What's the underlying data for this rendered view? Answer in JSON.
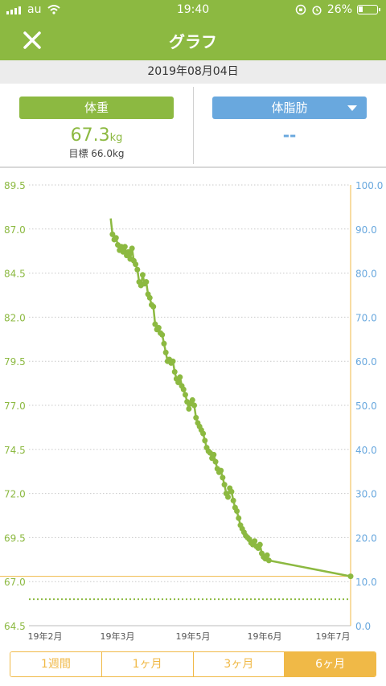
{
  "status_bar": {
    "carrier": "au",
    "time": "19:40",
    "battery": "26%",
    "battery_level": 0.26
  },
  "header": {
    "title": "グラフ",
    "close_icon": "close-icon"
  },
  "date": "2019年08月04日",
  "weight_panel": {
    "button_label": "体重",
    "value": "67.3",
    "unit": "kg",
    "goal": "目標 66.0kg"
  },
  "fat_panel": {
    "button_label": "体脂肪",
    "value": "--"
  },
  "tabs": [
    {
      "label": "1週間",
      "active": false
    },
    {
      "label": "1ヶ月",
      "active": false
    },
    {
      "label": "3ヶ月",
      "active": false
    },
    {
      "label": "6ヶ月",
      "active": true
    }
  ],
  "colors": {
    "green": "#8cb941",
    "blue": "#69a8de",
    "orange": "#f0b947",
    "goal": "#8cb941",
    "latest_line": "#f0b947"
  },
  "chart_data": {
    "type": "line",
    "y_left": {
      "ticks": [
        "89.5",
        "87.0",
        "84.5",
        "82.0",
        "79.5",
        "77.0",
        "74.5",
        "72.0",
        "69.5",
        "67.0",
        "64.5"
      ],
      "range": [
        64.5,
        89.5
      ]
    },
    "y_right": {
      "ticks": [
        "100.0",
        "90.0",
        "80.0",
        "70.0",
        "60.0",
        "50.0",
        "40.0",
        "30.0",
        "20.0",
        "10.0",
        "0.0"
      ],
      "range": [
        0,
        100
      ]
    },
    "x_ticks": [
      "19年2月",
      "19年3月",
      "19年5月",
      "19年6月",
      "19年7月"
    ],
    "x_range": [
      "2019-02-04",
      "2019-08-04"
    ],
    "goal": 66.0,
    "latest": 67.3,
    "series": [
      {
        "values": [
          [
            "2019-03-22",
            87.6
          ],
          [
            "2019-03-23",
            86.7
          ],
          [
            "2019-03-24",
            86.4
          ],
          [
            "2019-03-25",
            86.5
          ],
          [
            "2019-03-26",
            86.1
          ],
          [
            "2019-03-27",
            85.8
          ],
          [
            "2019-03-28",
            86.0
          ],
          [
            "2019-03-29",
            85.7
          ],
          [
            "2019-03-30",
            86.0
          ],
          [
            "2019-03-31",
            85.5
          ],
          [
            "2019-04-01",
            85.7
          ],
          [
            "2019-04-02",
            85.3
          ],
          [
            "2019-04-03",
            85.9
          ],
          [
            "2019-04-04",
            85.2
          ],
          [
            "2019-04-05",
            85.0
          ],
          [
            "2019-04-06",
            84.7
          ],
          [
            "2019-04-07",
            84.0
          ],
          [
            "2019-04-08",
            83.8
          ],
          [
            "2019-04-09",
            84.4
          ],
          [
            "2019-04-10",
            83.9
          ],
          [
            "2019-04-11",
            84.0
          ],
          [
            "2019-04-12",
            83.3
          ],
          [
            "2019-04-13",
            83.1
          ],
          [
            "2019-04-14",
            82.7
          ],
          [
            "2019-04-15",
            82.6
          ],
          [
            "2019-04-16",
            81.6
          ],
          [
            "2019-04-17",
            81.3
          ],
          [
            "2019-04-18",
            81.4
          ],
          [
            "2019-04-19",
            81.1
          ],
          [
            "2019-04-20",
            81.0
          ],
          [
            "2019-04-21",
            80.5
          ],
          [
            "2019-04-22",
            80.0
          ],
          [
            "2019-04-23",
            79.5
          ],
          [
            "2019-04-24",
            79.6
          ],
          [
            "2019-04-25",
            79.4
          ],
          [
            "2019-04-26",
            79.5
          ],
          [
            "2019-04-27",
            78.9
          ],
          [
            "2019-04-28",
            78.5
          ],
          [
            "2019-04-29",
            78.3
          ],
          [
            "2019-04-30",
            78.6
          ],
          [
            "2019-05-01",
            78.1
          ],
          [
            "2019-05-02",
            77.9
          ],
          [
            "2019-05-03",
            77.6
          ],
          [
            "2019-05-04",
            77.2
          ],
          [
            "2019-05-05",
            76.8
          ],
          [
            "2019-05-06",
            77.1
          ],
          [
            "2019-05-07",
            77.3
          ],
          [
            "2019-05-08",
            77.0
          ],
          [
            "2019-05-09",
            76.3
          ],
          [
            "2019-05-10",
            76.0
          ],
          [
            "2019-05-11",
            75.8
          ],
          [
            "2019-05-12",
            75.6
          ],
          [
            "2019-05-13",
            75.4
          ],
          [
            "2019-05-14",
            75.0
          ],
          [
            "2019-05-15",
            74.6
          ],
          [
            "2019-05-16",
            74.4
          ],
          [
            "2019-05-17",
            74.3
          ],
          [
            "2019-05-18",
            74.0
          ],
          [
            "2019-05-19",
            74.2
          ],
          [
            "2019-05-20",
            73.8
          ],
          [
            "2019-05-21",
            73.4
          ],
          [
            "2019-05-22",
            73.2
          ],
          [
            "2019-05-23",
            73.3
          ],
          [
            "2019-05-24",
            72.9
          ],
          [
            "2019-05-25",
            72.5
          ],
          [
            "2019-05-26",
            72.0
          ],
          [
            "2019-05-27",
            71.8
          ],
          [
            "2019-05-28",
            72.3
          ],
          [
            "2019-05-29",
            72.1
          ],
          [
            "2019-05-30",
            71.6
          ],
          [
            "2019-05-31",
            71.2
          ],
          [
            "2019-06-01",
            71.0
          ],
          [
            "2019-06-02",
            70.6
          ],
          [
            "2019-06-03",
            70.2
          ],
          [
            "2019-06-04",
            70.0
          ],
          [
            "2019-06-05",
            69.8
          ],
          [
            "2019-06-06",
            69.6
          ],
          [
            "2019-06-07",
            69.5
          ],
          [
            "2019-06-08",
            69.4
          ],
          [
            "2019-06-09",
            69.2
          ],
          [
            "2019-06-10",
            69.1
          ],
          [
            "2019-06-11",
            69.3
          ],
          [
            "2019-06-12",
            69.0
          ],
          [
            "2019-06-13",
            68.9
          ],
          [
            "2019-06-14",
            69.1
          ],
          [
            "2019-06-15",
            68.6
          ],
          [
            "2019-06-16",
            68.4
          ],
          [
            "2019-06-17",
            68.3
          ],
          [
            "2019-06-18",
            68.5
          ],
          [
            "2019-06-19",
            68.2
          ],
          [
            "2019-08-04",
            67.3
          ]
        ]
      }
    ]
  }
}
